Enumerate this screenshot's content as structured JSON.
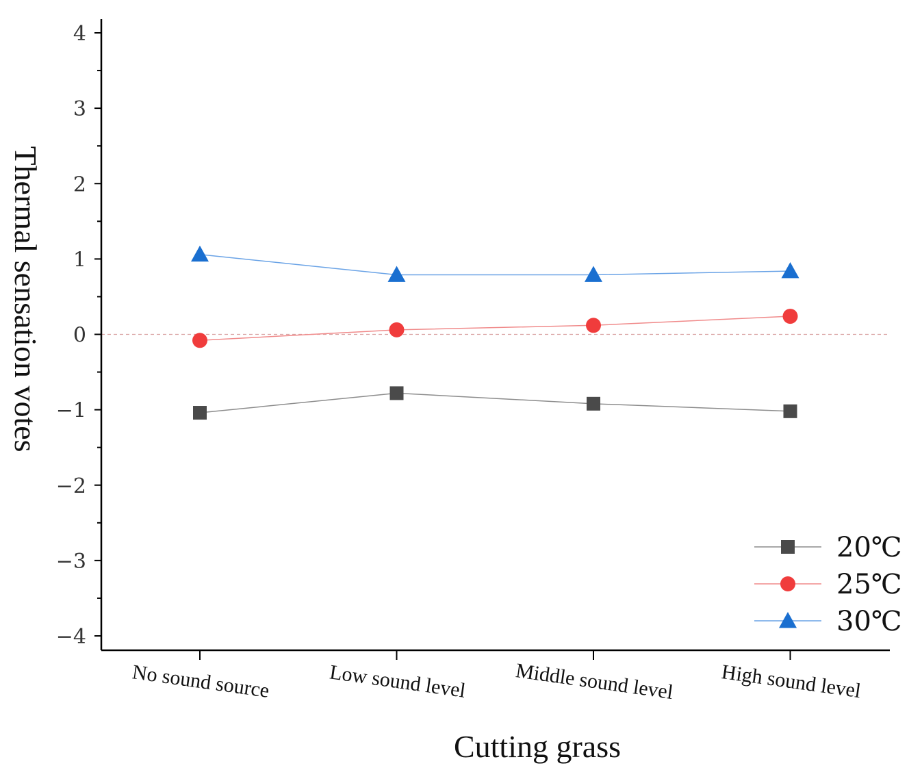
{
  "chart_data": {
    "type": "line",
    "title": "",
    "xlabel": "Cutting grass",
    "ylabel": "Thermal sensation votes",
    "categories": [
      "No sound source",
      "Low sound level",
      "Middle sound level",
      "High sound level"
    ],
    "ylim": [
      -4,
      4
    ],
    "yticks": [
      -4,
      -3,
      -2,
      -1,
      0,
      1,
      2,
      3,
      4
    ],
    "ytick_labels": [
      "−4",
      "−3",
      "−2",
      "−1",
      "0",
      "1",
      "2",
      "3",
      "4"
    ],
    "reference_line": 0,
    "legend_position": "bottom-right",
    "series": [
      {
        "name": "20℃",
        "marker": "square",
        "color": "#4a4a4a",
        "line_color": "#8c8c8c",
        "values": [
          -1.04,
          -0.78,
          -0.92,
          -1.02
        ]
      },
      {
        "name": "25℃",
        "marker": "circle",
        "color": "#f03c3c",
        "line_color": "#f08a8a",
        "values": [
          -0.08,
          0.06,
          0.12,
          0.24
        ]
      },
      {
        "name": "30℃",
        "marker": "triangle",
        "color": "#1a6fd0",
        "line_color": "#6aa3e6",
        "values": [
          1.06,
          0.79,
          0.79,
          0.84
        ]
      }
    ]
  }
}
